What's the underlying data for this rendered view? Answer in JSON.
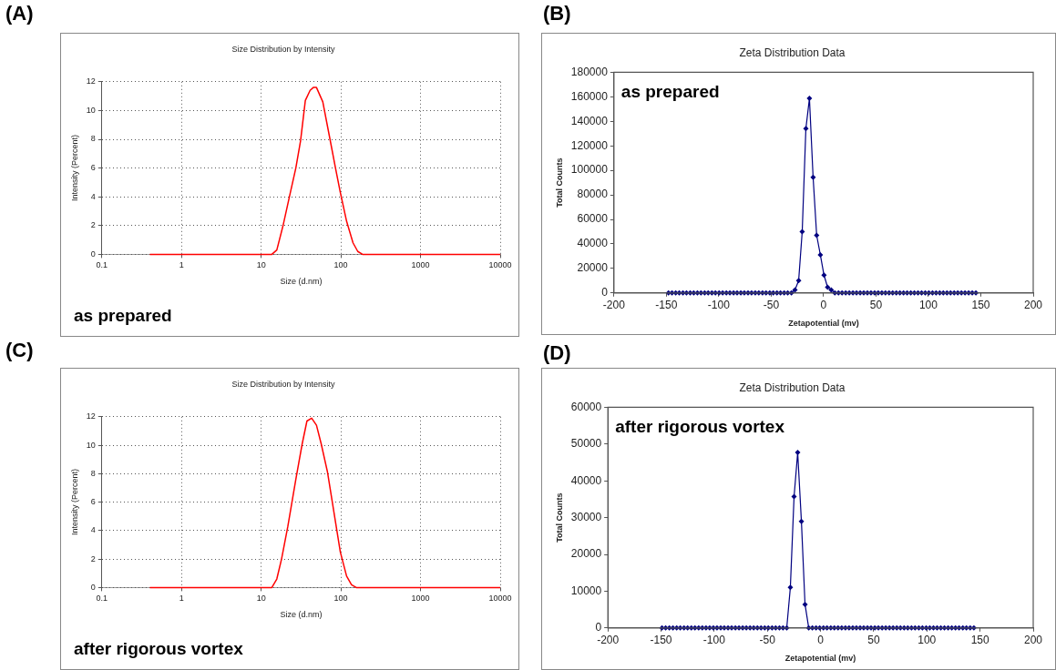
{
  "chart_data": [
    {
      "type": "line",
      "title": "Size Distribution by Intensity",
      "xlabel": "Size (d.nm)",
      "ylabel": "Intensity (Percent)",
      "annotations": [
        "(A)",
        "as prepared"
      ],
      "log": "x",
      "grid": true,
      "marker": "none",
      "xlim": [
        0.1,
        10000
      ],
      "xticks": [
        0.1,
        1,
        10,
        100,
        1000,
        10000
      ],
      "ylim": [
        0,
        12
      ],
      "yticks": [
        0,
        2,
        4,
        6,
        8,
        10,
        12
      ],
      "series": [
        {
          "color": "#ff0000",
          "x": [
            0.4,
            13.6,
            15.7,
            18.8,
            22.6,
            27.2,
            31.2,
            35.8,
            41.1,
            45.1,
            49.4,
            59.3,
            71.3,
            85.6,
            98.4,
            118,
            142,
            163,
            187,
            10000
          ],
          "values": [
            0,
            0,
            0.3,
            2,
            4,
            6,
            7.9,
            10.7,
            11.4,
            11.6,
            11.6,
            10.6,
            8.3,
            6,
            4.3,
            2.3,
            0.8,
            0.2,
            0,
            0
          ]
        }
      ]
    },
    {
      "type": "line",
      "title": "Zeta Distribution Data",
      "xlabel": "Zetapotential (mv)",
      "ylabel": "Total Counts",
      "annotations": [
        "(B)",
        "as prepared"
      ],
      "marker": "diamond",
      "xlim": [
        -200,
        200
      ],
      "xticks": [
        -200,
        -150,
        -100,
        -50,
        0,
        50,
        100,
        150,
        200
      ],
      "ylim": [
        0,
        180000
      ],
      "yticks": [
        0,
        20000,
        40000,
        60000,
        80000,
        100000,
        120000,
        140000,
        160000,
        180000
      ],
      "series": [
        {
          "color": "#000080",
          "x": [
            -148.0,
            -144.6,
            -141.1,
            -137.7,
            -134.2,
            -130.8,
            -127.3,
            -123.9,
            -120.4,
            -117.0,
            -113.5,
            -110.1,
            -106.6,
            -103.2,
            -99.7,
            -96.3,
            -92.8,
            -89.4,
            -85.9,
            -82.5,
            -79.0,
            -75.6,
            -72.1,
            -68.7,
            -65.2,
            -61.8,
            -58.3,
            -54.9,
            -51.4,
            -48.0,
            -44.5,
            -41.1,
            -37.6,
            -34.2,
            -30.7,
            -27.3,
            -23.8,
            -20.4,
            -16.9,
            -13.5,
            -10.0,
            -6.6,
            -3.1,
            0.4,
            3.8,
            7.3,
            10.7,
            14.2,
            17.6,
            21.1,
            24.5,
            28.0,
            31.4,
            34.9,
            38.3,
            41.8,
            45.2,
            48.7,
            52.1,
            55.6,
            59.0,
            62.5,
            65.9,
            69.4,
            72.8,
            76.3,
            79.7,
            83.2,
            86.6,
            90.1,
            93.5,
            97.0,
            100.4,
            103.9,
            107.3,
            110.8,
            114.2,
            117.7,
            121.1,
            124.6,
            128.0,
            131.5,
            134.9,
            138.4,
            141.8,
            145.3
          ],
          "values": [
            0,
            0,
            0,
            0,
            0,
            0,
            0,
            0,
            0,
            0,
            0,
            0,
            0,
            0,
            0,
            0,
            0,
            0,
            0,
            0,
            0,
            0,
            0,
            0,
            0,
            0,
            0,
            0,
            0,
            0,
            0,
            0,
            0,
            0,
            0,
            2400,
            10000,
            50000,
            134000,
            158700,
            94300,
            47000,
            31100,
            14500,
            4700,
            2400,
            0,
            0,
            0,
            0,
            0,
            0,
            0,
            0,
            0,
            0,
            0,
            0,
            0,
            0,
            0,
            0,
            0,
            0,
            0,
            0,
            0,
            0,
            0,
            0,
            0,
            0,
            0,
            0,
            0,
            0,
            0,
            0,
            0,
            0,
            0,
            0,
            0,
            0,
            0,
            0
          ]
        }
      ]
    },
    {
      "type": "line",
      "title": "Size Distribution by Intensity",
      "xlabel": "Size (d.nm)",
      "ylabel": "Intensity (Percent)",
      "annotations": [
        "(C)",
        "after rigorous vortex"
      ],
      "log": "x",
      "grid": true,
      "marker": "none",
      "xlim": [
        0.1,
        10000
      ],
      "xticks": [
        0.1,
        1,
        10,
        100,
        1000,
        10000
      ],
      "ylim": [
        0,
        12
      ],
      "yticks": [
        0,
        2,
        4,
        6,
        8,
        10,
        12
      ],
      "series": [
        {
          "color": "#ff0000",
          "x": [
            0.4,
            13.6,
            15.7,
            18.0,
            21.6,
            27.2,
            32.7,
            37.5,
            43.0,
            49.4,
            56.6,
            68.0,
            81.8,
            98.4,
            118,
            136,
            156,
            10000
          ],
          "values": [
            0,
            0,
            0.6,
            2,
            4.3,
            7.6,
            10.1,
            11.7,
            11.9,
            11.4,
            10.1,
            8.1,
            5.3,
            2.5,
            0.8,
            0.2,
            0,
            0
          ]
        }
      ]
    },
    {
      "type": "line",
      "title": "Zeta Distribution Data",
      "xlabel": "Zetapotential (mv)",
      "ylabel": "Total Counts",
      "annotations": [
        "(D)",
        "after rigorous vortex"
      ],
      "marker": "diamond",
      "xlim": [
        -200,
        200
      ],
      "xticks": [
        -200,
        -150,
        -100,
        -50,
        0,
        50,
        100,
        150,
        200
      ],
      "ylim": [
        0,
        60000
      ],
      "yticks": [
        0,
        10000,
        20000,
        30000,
        40000,
        50000,
        60000
      ],
      "series": [
        {
          "color": "#000080",
          "x": [
            -149.1,
            -145.7,
            -142.2,
            -138.8,
            -135.3,
            -131.9,
            -128.4,
            -125.0,
            -121.5,
            -118.1,
            -114.6,
            -111.2,
            -107.7,
            -104.3,
            -100.8,
            -97.4,
            -93.9,
            -90.5,
            -87.0,
            -83.6,
            -80.1,
            -76.7,
            -73.2,
            -69.8,
            -66.3,
            -62.9,
            -59.4,
            -56.0,
            -52.5,
            -49.1,
            -45.6,
            -42.2,
            -38.7,
            -35.3,
            -31.8,
            -28.4,
            -24.9,
            -21.5,
            -18.0,
            -14.6,
            -11.1,
            -7.7,
            -4.2,
            -0.8,
            2.7,
            6.1,
            9.6,
            13.0,
            16.5,
            19.9,
            23.4,
            26.8,
            30.3,
            33.7,
            37.2,
            40.6,
            44.1,
            47.5,
            51.0,
            54.4,
            57.9,
            61.3,
            64.8,
            68.2,
            71.7,
            75.1,
            78.6,
            82.0,
            85.5,
            88.9,
            92.4,
            95.8,
            99.3,
            102.7,
            106.2,
            109.6,
            113.1,
            116.5,
            120.0,
            123.4,
            126.9,
            130.3,
            133.8,
            137.2,
            140.7,
            144.2
          ],
          "values": [
            0,
            0,
            0,
            0,
            0,
            0,
            0,
            0,
            0,
            0,
            0,
            0,
            0,
            0,
            0,
            0,
            0,
            0,
            0,
            0,
            0,
            0,
            0,
            0,
            0,
            0,
            0,
            0,
            0,
            0,
            0,
            0,
            0,
            0,
            0,
            11000,
            35700,
            47700,
            29000,
            6400,
            0,
            0,
            0,
            0,
            0,
            0,
            0,
            0,
            0,
            0,
            0,
            0,
            0,
            0,
            0,
            0,
            0,
            0,
            0,
            0,
            0,
            0,
            0,
            0,
            0,
            0,
            0,
            0,
            0,
            0,
            0,
            0,
            0,
            0,
            0,
            0,
            0,
            0,
            0,
            0,
            0,
            0,
            0,
            0,
            0,
            0
          ]
        }
      ]
    }
  ]
}
